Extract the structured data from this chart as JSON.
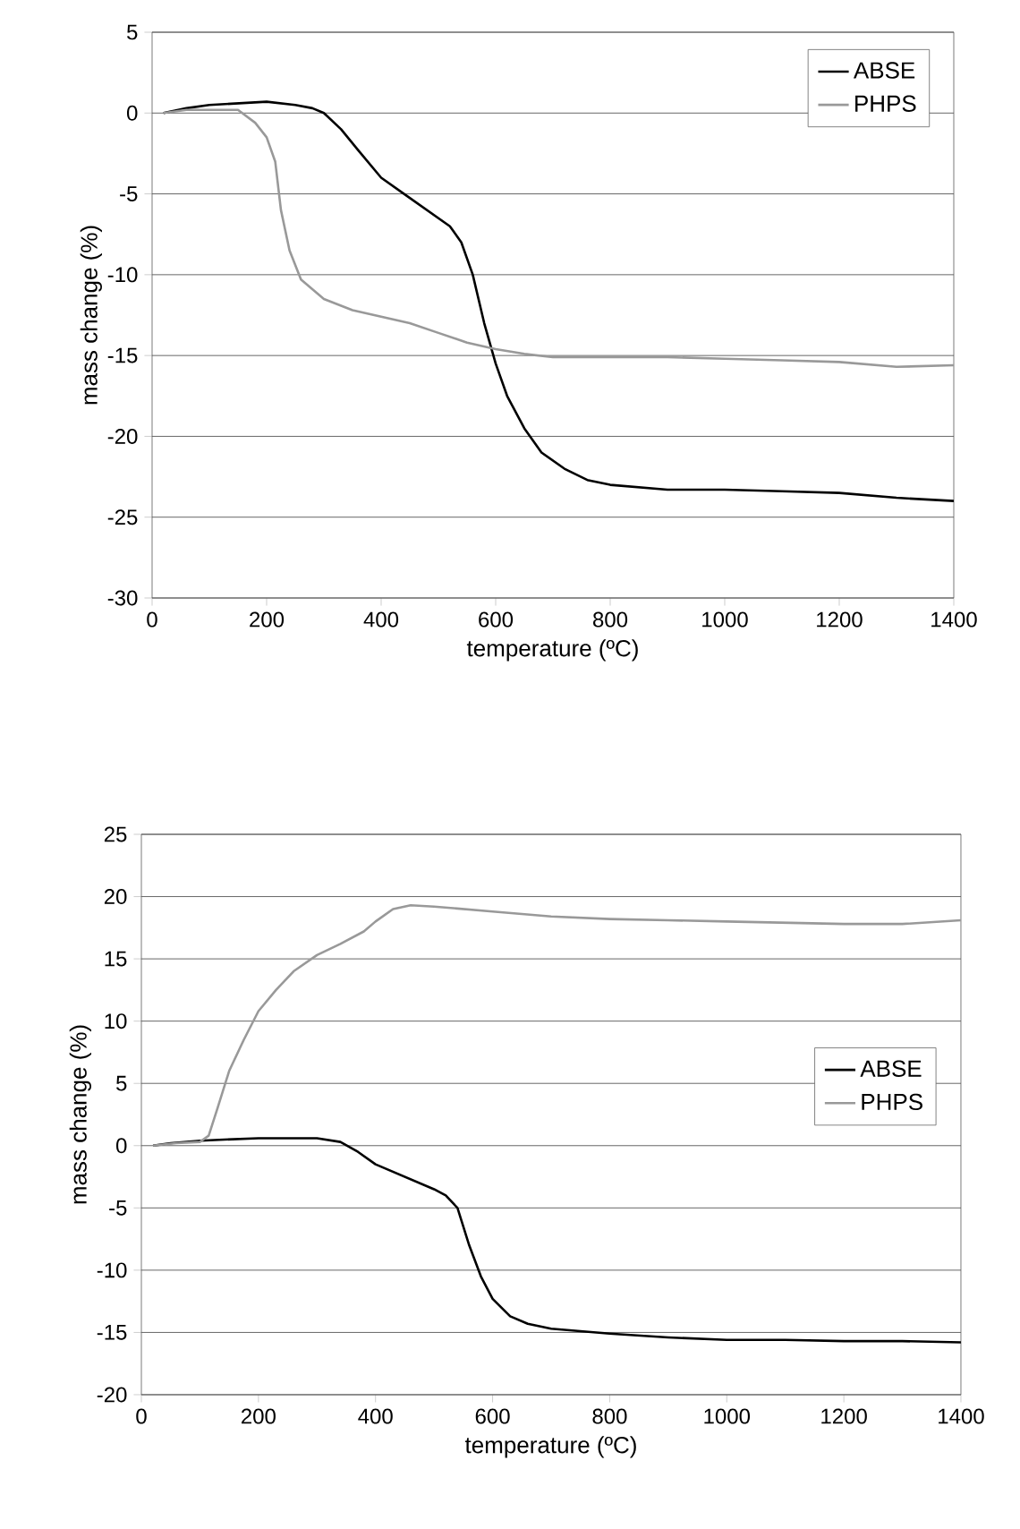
{
  "chart_data": [
    {
      "type": "line",
      "xlabel": "temperature (ºC)",
      "ylabel": "mass change (%)",
      "xlim": [
        0,
        1400
      ],
      "ylim": [
        -30,
        5
      ],
      "xticks": [
        0,
        200,
        400,
        600,
        800,
        1000,
        1200,
        1400
      ],
      "yticks": [
        -30,
        -25,
        -20,
        -15,
        -10,
        -5,
        0,
        5
      ],
      "grid": "y",
      "legend": "top right",
      "series": [
        {
          "name": "ABSE",
          "color": "#000000",
          "x": [
            20,
            60,
            100,
            150,
            200,
            250,
            280,
            300,
            330,
            360,
            400,
            440,
            480,
            520,
            540,
            560,
            580,
            600,
            620,
            650,
            680,
            720,
            760,
            800,
            900,
            1000,
            1100,
            1200,
            1300,
            1400
          ],
          "values": [
            0,
            0.3,
            0.5,
            0.6,
            0.7,
            0.5,
            0.3,
            0,
            -1,
            -2.3,
            -4,
            -5,
            -6,
            -7,
            -8,
            -10,
            -13,
            -15.5,
            -17.5,
            -19.5,
            -21,
            -22,
            -22.7,
            -23,
            -23.3,
            -23.3,
            -23.4,
            -23.5,
            -23.8,
            -24
          ]
        },
        {
          "name": "PHPS",
          "color": "#999999",
          "x": [
            20,
            60,
            100,
            150,
            180,
            200,
            215,
            225,
            240,
            260,
            300,
            350,
            400,
            450,
            500,
            550,
            600,
            650,
            700,
            800,
            900,
            1000,
            1100,
            1200,
            1300,
            1400
          ],
          "values": [
            0,
            0.2,
            0.2,
            0.2,
            -0.6,
            -1.5,
            -3,
            -6,
            -8.5,
            -10.3,
            -11.5,
            -12.2,
            -12.6,
            -13,
            -13.6,
            -14.2,
            -14.6,
            -14.9,
            -15.1,
            -15.1,
            -15.1,
            -15.2,
            -15.3,
            -15.4,
            -15.7,
            -15.6
          ]
        }
      ]
    },
    {
      "type": "line",
      "xlabel": "temperature (ºC)",
      "ylabel": "mass change (%)",
      "xlim": [
        0,
        1400
      ],
      "ylim": [
        -20,
        25
      ],
      "xticks": [
        0,
        200,
        400,
        600,
        800,
        1000,
        1200,
        1400
      ],
      "yticks": [
        -20,
        -15,
        -10,
        -5,
        0,
        5,
        10,
        15,
        20,
        25
      ],
      "grid": "y",
      "legend": "right",
      "series": [
        {
          "name": "ABSE",
          "color": "#000000",
          "x": [
            20,
            50,
            100,
            200,
            300,
            340,
            370,
            400,
            450,
            500,
            520,
            540,
            560,
            580,
            600,
            630,
            660,
            700,
            800,
            900,
            1000,
            1100,
            1200,
            1300,
            1400
          ],
          "values": [
            0,
            0.2,
            0.4,
            0.6,
            0.6,
            0.3,
            -0.5,
            -1.5,
            -2.5,
            -3.5,
            -4,
            -5,
            -8,
            -10.5,
            -12.3,
            -13.7,
            -14.3,
            -14.7,
            -15.1,
            -15.4,
            -15.6,
            -15.6,
            -15.7,
            -15.7,
            -15.8
          ]
        },
        {
          "name": "PHPS",
          "color": "#999999",
          "x": [
            20,
            60,
            100,
            115,
            130,
            150,
            175,
            200,
            230,
            260,
            300,
            340,
            380,
            400,
            430,
            460,
            500,
            600,
            700,
            800,
            900,
            1000,
            1100,
            1200,
            1300,
            1400
          ],
          "values": [
            0,
            0.2,
            0.3,
            0.8,
            3,
            6,
            8.5,
            10.8,
            12.5,
            14,
            15.3,
            16.2,
            17.2,
            18,
            19,
            19.3,
            19.2,
            18.8,
            18.4,
            18.2,
            18.1,
            18,
            17.9,
            17.8,
            17.8,
            18.1
          ]
        }
      ]
    }
  ]
}
